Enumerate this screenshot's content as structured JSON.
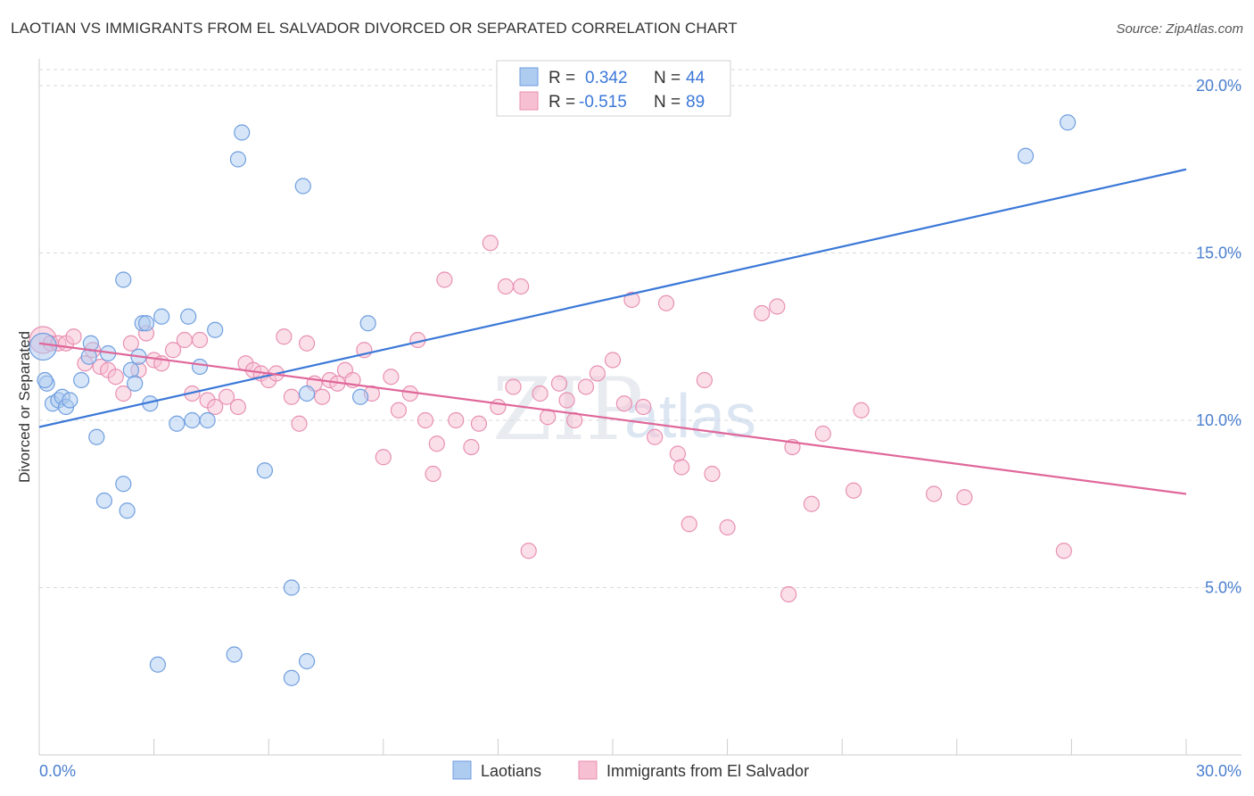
{
  "title": "LAOTIAN VS IMMIGRANTS FROM EL SALVADOR DIVORCED OR SEPARATED CORRELATION CHART",
  "source": "Source: ZipAtlas.com",
  "colors": {
    "blue": "#3b78d8",
    "blue_fill": "#aecbf0",
    "pink": "#e0679a",
    "pink_fill": "#f7bfd2",
    "grid": "#d9d9d9",
    "tick_text": "#4a7fcf"
  },
  "legend_box": {
    "r1_label": "R =",
    "r1_value": "0.342",
    "n1_label": "N =",
    "n1_value": "44",
    "r2_label": "R =",
    "r2_value": "-0.515",
    "n2_label": "N =",
    "n2_value": "89"
  },
  "watermark": {
    "part1": "ZIP",
    "part2": "atlas"
  },
  "chart_data": {
    "type": "scatter",
    "title": "LAOTIAN VS IMMIGRANTS FROM EL SALVADOR DIVORCED OR SEPARATED CORRELATION CHART",
    "xlabel": "",
    "ylabel": "Divorced or Separated",
    "xlim": [
      0,
      30
    ],
    "ylim": [
      0,
      20.8
    ],
    "x_ticks": [
      "0.0%",
      "30.0%"
    ],
    "y_ticks": [
      {
        "value": 5,
        "label": "5.0%"
      },
      {
        "value": 10,
        "label": "10.0%"
      },
      {
        "value": 15,
        "label": "15.0%"
      },
      {
        "value": 20,
        "label": "20.0%"
      }
    ],
    "grid": true,
    "legend_position": "bottom",
    "series": [
      {
        "name": "Laotians",
        "color": "#3b78d8",
        "r": 0.342,
        "n": 44,
        "trend": {
          "x": [
            0,
            30
          ],
          "y": [
            9.8,
            17.5
          ]
        },
        "points": [
          [
            0.1,
            12.2
          ],
          [
            0.2,
            11.1
          ],
          [
            0.35,
            10.5
          ],
          [
            0.5,
            10.6
          ],
          [
            0.6,
            10.7
          ],
          [
            0.7,
            10.4
          ],
          [
            0.8,
            10.6
          ],
          [
            1.1,
            11.2
          ],
          [
            1.3,
            11.9
          ],
          [
            1.35,
            12.3
          ],
          [
            1.5,
            9.5
          ],
          [
            1.7,
            7.6
          ],
          [
            1.8,
            12.0
          ],
          [
            2.2,
            14.2
          ],
          [
            2.2,
            8.1
          ],
          [
            2.3,
            7.3
          ],
          [
            2.4,
            11.5
          ],
          [
            2.5,
            11.1
          ],
          [
            2.6,
            11.9
          ],
          [
            2.7,
            12.9
          ],
          [
            2.8,
            12.9
          ],
          [
            2.9,
            10.5
          ],
          [
            3.1,
            2.7
          ],
          [
            3.2,
            13.1
          ],
          [
            3.6,
            9.9
          ],
          [
            3.9,
            13.1
          ],
          [
            4.0,
            10.0
          ],
          [
            4.2,
            11.6
          ],
          [
            4.4,
            10.0
          ],
          [
            4.6,
            12.7
          ],
          [
            5.1,
            3.0
          ],
          [
            5.2,
            17.8
          ],
          [
            5.3,
            18.6
          ],
          [
            5.9,
            8.5
          ],
          [
            6.6,
            5.0
          ],
          [
            6.6,
            2.3
          ],
          [
            6.9,
            17.0
          ],
          [
            7.0,
            2.8
          ],
          [
            7.0,
            10.8
          ],
          [
            8.4,
            10.7
          ],
          [
            8.6,
            12.9
          ],
          [
            25.8,
            17.9
          ],
          [
            26.9,
            18.9
          ],
          [
            0.15,
            11.2
          ]
        ]
      },
      {
        "name": "Immigrants from El Salvador",
        "color": "#e0679a",
        "r": -0.515,
        "n": 89,
        "trend": {
          "x": [
            0,
            30
          ],
          "y": [
            12.3,
            7.8
          ]
        },
        "points": [
          [
            0.1,
            12.4
          ],
          [
            0.3,
            12.3
          ],
          [
            0.5,
            12.3
          ],
          [
            0.7,
            12.3
          ],
          [
            0.9,
            12.5
          ],
          [
            1.2,
            11.7
          ],
          [
            1.4,
            12.1
          ],
          [
            1.6,
            11.6
          ],
          [
            1.8,
            11.5
          ],
          [
            2.0,
            11.3
          ],
          [
            2.2,
            10.8
          ],
          [
            2.4,
            12.3
          ],
          [
            2.6,
            11.5
          ],
          [
            2.8,
            12.6
          ],
          [
            3.0,
            11.8
          ],
          [
            3.2,
            11.7
          ],
          [
            3.5,
            12.1
          ],
          [
            3.8,
            12.4
          ],
          [
            4.0,
            10.8
          ],
          [
            4.2,
            12.4
          ],
          [
            4.4,
            10.6
          ],
          [
            4.6,
            10.4
          ],
          [
            4.9,
            10.7
          ],
          [
            5.2,
            10.4
          ],
          [
            5.4,
            11.7
          ],
          [
            5.6,
            11.5
          ],
          [
            5.8,
            11.4
          ],
          [
            6.0,
            11.2
          ],
          [
            6.2,
            11.4
          ],
          [
            6.4,
            12.5
          ],
          [
            6.6,
            10.7
          ],
          [
            6.8,
            9.9
          ],
          [
            7.0,
            12.3
          ],
          [
            7.2,
            11.1
          ],
          [
            7.4,
            10.7
          ],
          [
            7.6,
            11.2
          ],
          [
            7.8,
            11.1
          ],
          [
            8.0,
            11.5
          ],
          [
            8.2,
            11.2
          ],
          [
            8.5,
            12.1
          ],
          [
            8.7,
            10.8
          ],
          [
            9.0,
            8.9
          ],
          [
            9.2,
            11.3
          ],
          [
            9.4,
            10.3
          ],
          [
            9.7,
            10.8
          ],
          [
            9.9,
            12.4
          ],
          [
            10.1,
            10.0
          ],
          [
            10.3,
            8.4
          ],
          [
            10.4,
            9.3
          ],
          [
            10.6,
            14.2
          ],
          [
            10.9,
            10.0
          ],
          [
            11.3,
            9.2
          ],
          [
            11.5,
            9.9
          ],
          [
            11.8,
            15.3
          ],
          [
            12.0,
            10.4
          ],
          [
            12.2,
            14.0
          ],
          [
            12.4,
            11.0
          ],
          [
            12.6,
            14.0
          ],
          [
            12.8,
            6.1
          ],
          [
            13.1,
            10.8
          ],
          [
            13.3,
            10.1
          ],
          [
            13.6,
            11.1
          ],
          [
            13.8,
            10.6
          ],
          [
            14.0,
            10.0
          ],
          [
            14.3,
            11.0
          ],
          [
            14.6,
            11.4
          ],
          [
            15.0,
            11.8
          ],
          [
            15.3,
            10.5
          ],
          [
            15.5,
            13.6
          ],
          [
            15.8,
            10.4
          ],
          [
            16.1,
            9.5
          ],
          [
            16.4,
            13.5
          ],
          [
            16.7,
            9.0
          ],
          [
            16.8,
            8.6
          ],
          [
            17.0,
            6.9
          ],
          [
            17.4,
            11.2
          ],
          [
            17.6,
            8.4
          ],
          [
            18.0,
            6.8
          ],
          [
            18.9,
            13.2
          ],
          [
            19.3,
            13.4
          ],
          [
            19.6,
            4.8
          ],
          [
            19.7,
            9.2
          ],
          [
            20.2,
            7.5
          ],
          [
            20.5,
            9.6
          ],
          [
            21.3,
            7.9
          ],
          [
            21.5,
            10.3
          ],
          [
            23.4,
            7.8
          ],
          [
            24.2,
            7.7
          ],
          [
            26.8,
            6.1
          ]
        ]
      }
    ]
  },
  "bottom_legend": {
    "item1": "Laotians",
    "item2": "Immigrants from El Salvador"
  }
}
